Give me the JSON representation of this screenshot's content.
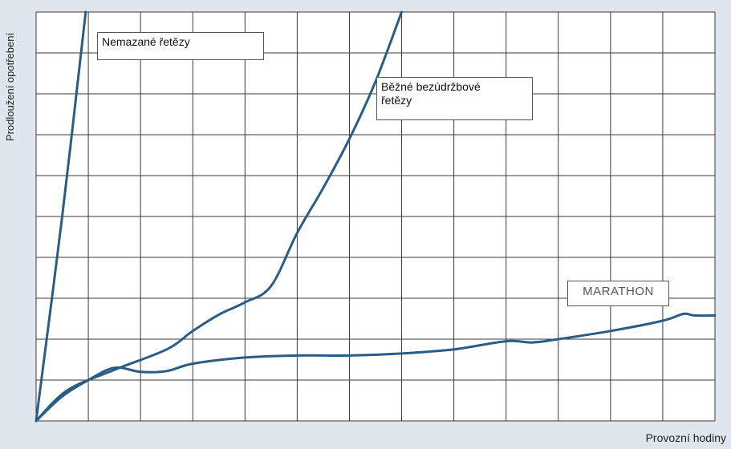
{
  "chart_data": {
    "type": "line",
    "title": "",
    "xlabel": "Provozní hodiny",
    "ylabel": "Prodloužení opotřebení",
    "xlim": [
      0,
      13
    ],
    "ylim": [
      0,
      10
    ],
    "grid": true,
    "x_tick_count": 13,
    "y_tick_count": 10,
    "line_color": "#2a5d86",
    "grid_color": "#3a3a3a",
    "series": [
      {
        "name": "Nemazané řetězy",
        "points": [
          [
            0,
            0
          ],
          [
            0.5,
            5
          ],
          [
            0.95,
            10
          ]
        ]
      },
      {
        "name": "Běžné bezúdržbové řetězy",
        "points": [
          [
            0,
            0
          ],
          [
            0.6,
            0.75
          ],
          [
            1.5,
            1.25
          ],
          [
            2.5,
            1.75
          ],
          [
            3,
            2.2
          ],
          [
            3.5,
            2.6
          ],
          [
            4,
            2.9
          ],
          [
            4.5,
            3.3
          ],
          [
            5,
            4.6
          ],
          [
            5.5,
            5.7
          ],
          [
            6,
            6.9
          ],
          [
            6.5,
            8.3
          ],
          [
            7,
            10
          ]
        ]
      },
      {
        "name": "MARATHON",
        "points": [
          [
            0,
            0
          ],
          [
            0.5,
            0.6
          ],
          [
            1,
            1.0
          ],
          [
            1.5,
            1.3
          ],
          [
            2,
            1.2
          ],
          [
            2.5,
            1.22
          ],
          [
            3,
            1.4
          ],
          [
            4,
            1.55
          ],
          [
            5,
            1.6
          ],
          [
            6,
            1.6
          ],
          [
            7,
            1.65
          ],
          [
            8,
            1.75
          ],
          [
            9,
            1.95
          ],
          [
            9.5,
            1.92
          ],
          [
            10,
            2.0
          ],
          [
            11,
            2.2
          ],
          [
            12,
            2.45
          ],
          [
            12.4,
            2.62
          ],
          [
            12.6,
            2.58
          ],
          [
            13,
            2.58
          ]
        ]
      }
    ],
    "annotations": [
      {
        "series": 0,
        "text": "Nemazané řetězy"
      },
      {
        "series": 1,
        "text_lines": [
          "Běžné bezúdržbové",
          "řetězy"
        ]
      },
      {
        "series": 2,
        "text": "MARATHON"
      }
    ]
  }
}
